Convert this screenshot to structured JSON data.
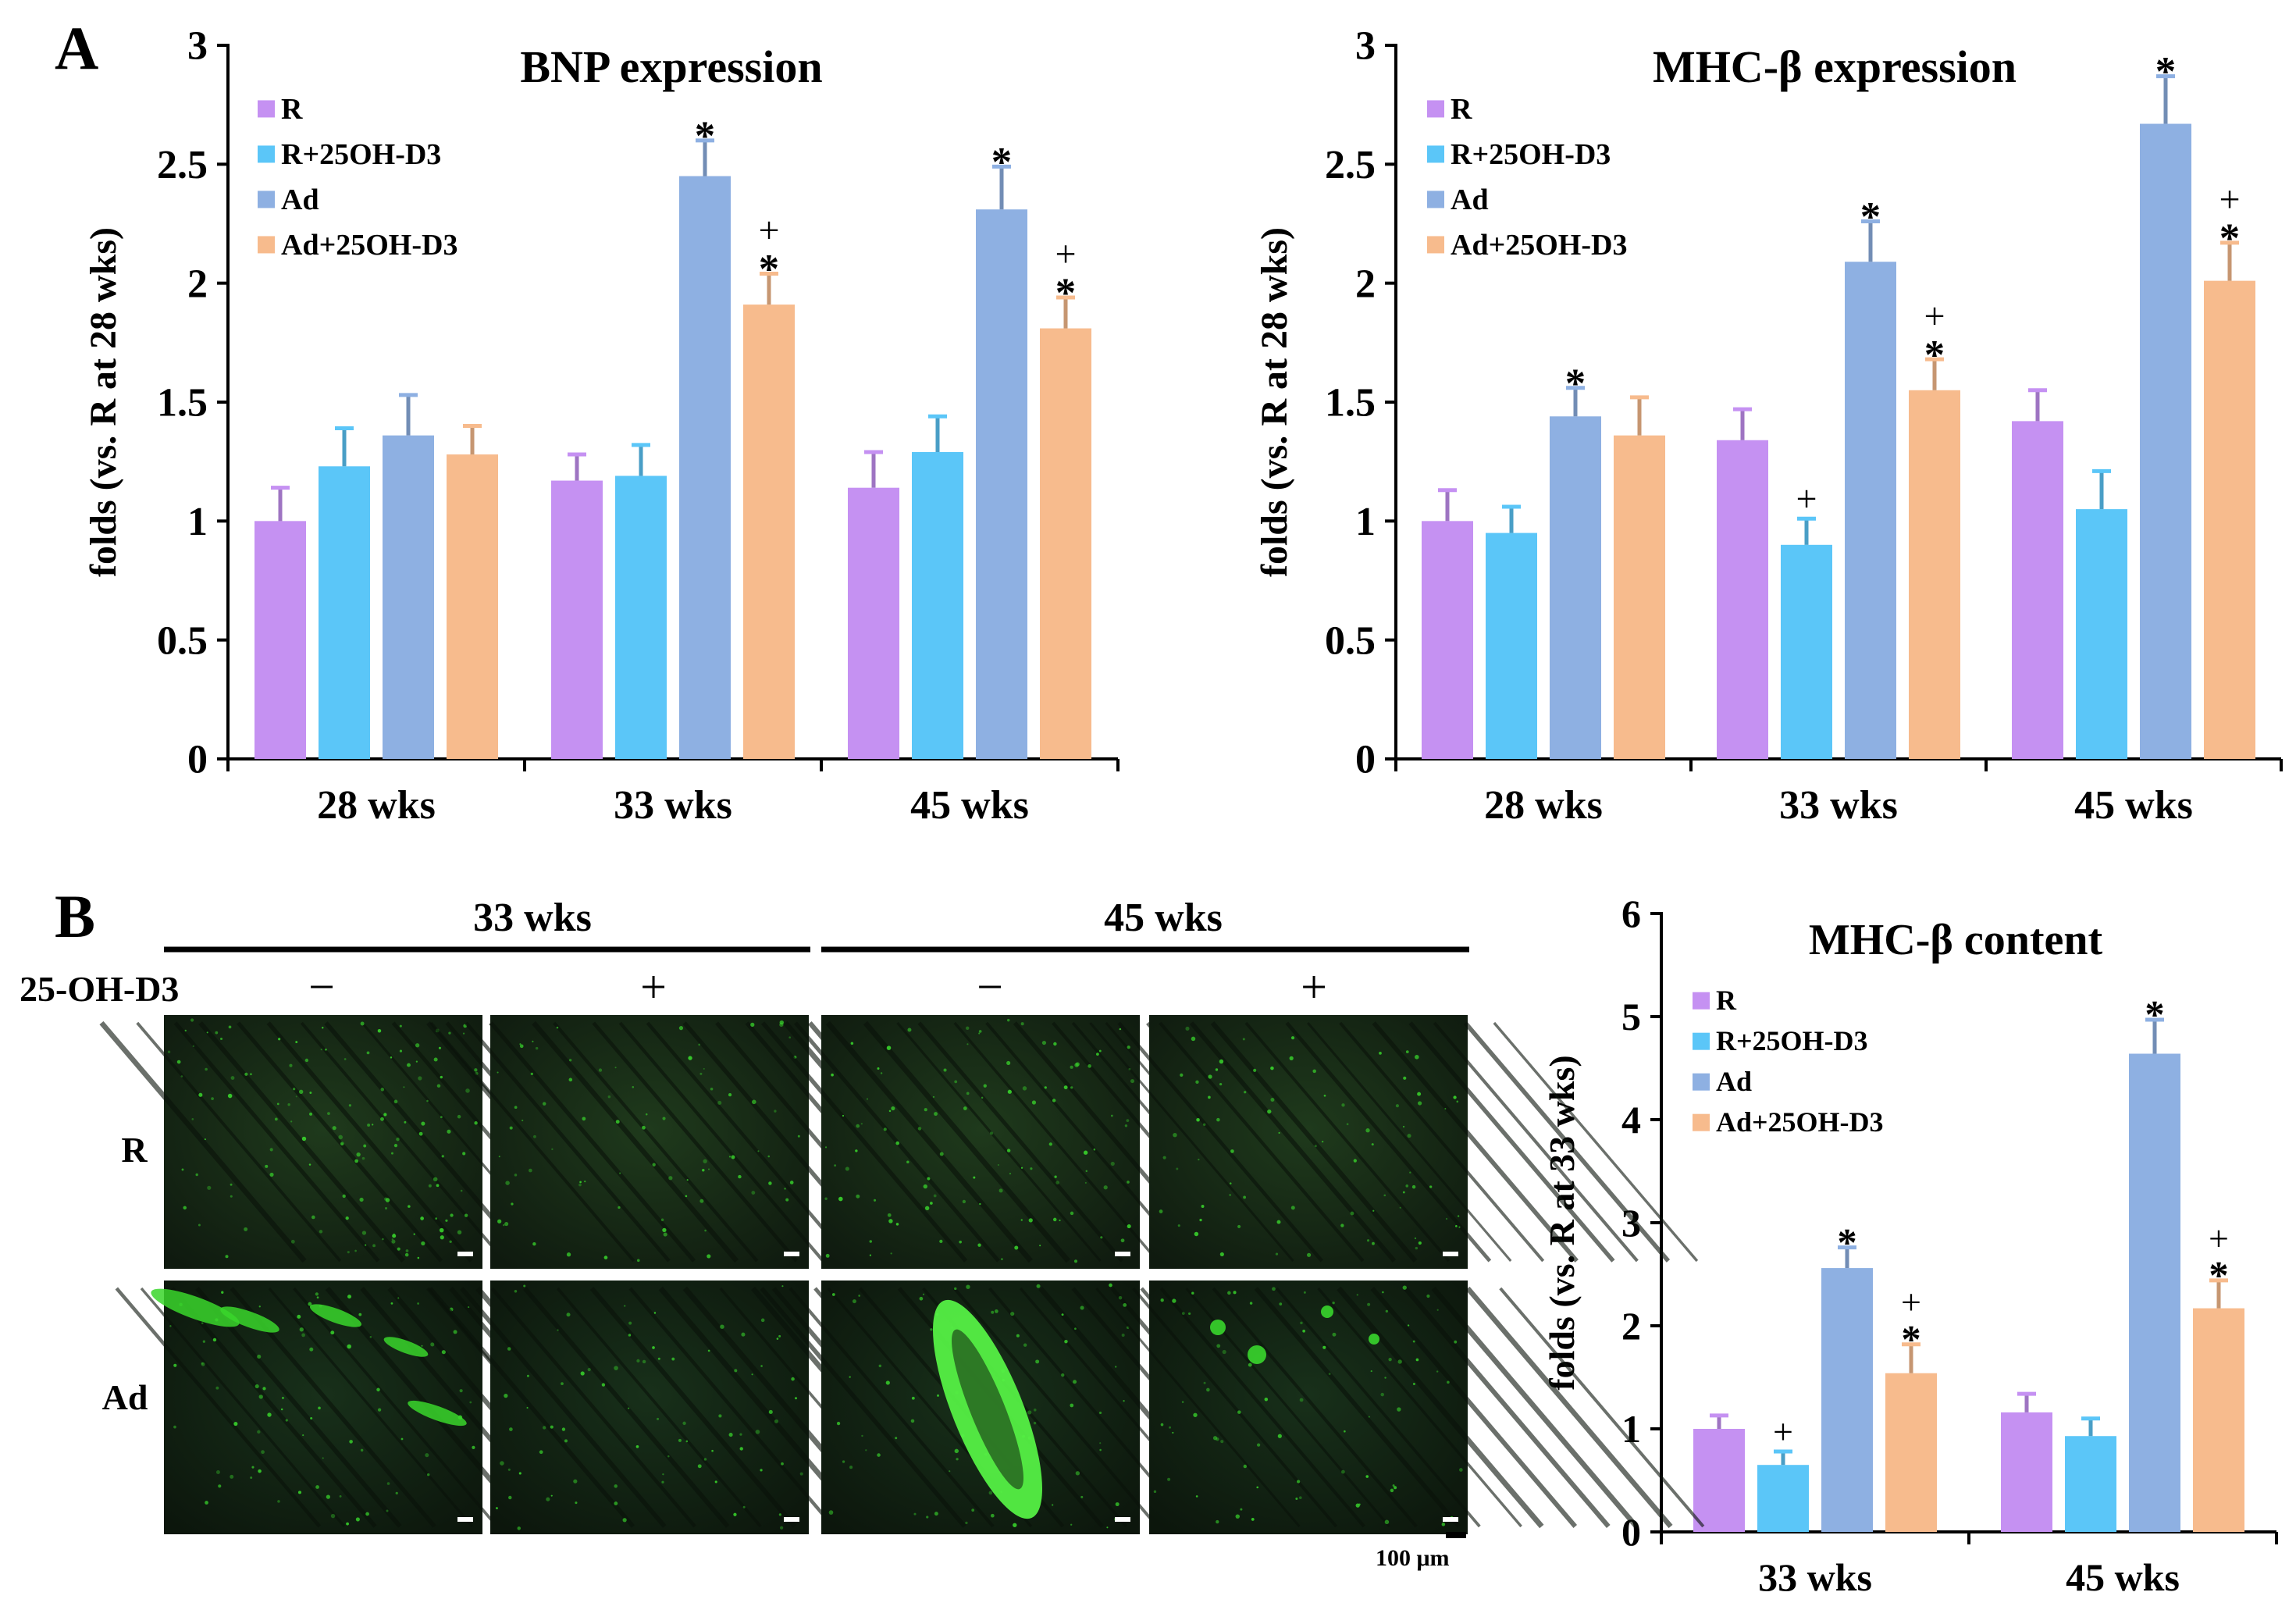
{
  "panels": {
    "a_label": "A",
    "b_label": "B"
  },
  "colors": {
    "R": "#c591f2",
    "R+25OH-D3": "#5bc6f8",
    "Ad": "#8eb0e2",
    "Ad+25OH-D3": "#f7bb8d",
    "axis": "#000000",
    "fluor": "#39d62c"
  },
  "chart_data": [
    {
      "type": "bar",
      "title": "BNP expression",
      "ylabel": "folds (vs. R at 28 wks)",
      "xlabel": "",
      "ylim": [
        0,
        3
      ],
      "yticks": [
        "0",
        "0.5",
        "1",
        "1.5",
        "2",
        "2.5",
        "3"
      ],
      "categories": [
        "28 wks",
        "33 wks",
        "45 wks"
      ],
      "legend": "top-left",
      "series": [
        {
          "name": "R",
          "values": [
            1.0,
            1.17,
            1.14
          ],
          "errors": [
            0.14,
            0.11,
            0.15
          ],
          "marks": [
            "",
            "",
            ""
          ]
        },
        {
          "name": "R+25OH-D3",
          "values": [
            1.23,
            1.19,
            1.29
          ],
          "errors": [
            0.16,
            0.13,
            0.15
          ],
          "marks": [
            "",
            "",
            ""
          ]
        },
        {
          "name": "Ad",
          "values": [
            1.36,
            2.45,
            2.31
          ],
          "errors": [
            0.17,
            0.15,
            0.18
          ],
          "marks": [
            "",
            "*",
            "*"
          ]
        },
        {
          "name": "Ad+25OH-D3",
          "values": [
            1.28,
            1.91,
            1.81
          ],
          "errors": [
            0.12,
            0.13,
            0.13
          ],
          "marks": [
            "",
            "+*",
            "+*"
          ]
        }
      ]
    },
    {
      "type": "bar",
      "title": "MHC-β expression",
      "ylabel": "folds (vs. R at 28 wks)",
      "xlabel": "",
      "ylim": [
        0,
        3
      ],
      "yticks": [
        "0",
        "0.5",
        "1",
        "1.5",
        "2",
        "2.5",
        "3"
      ],
      "categories": [
        "28 wks",
        "33 wks",
        "45 wks"
      ],
      "legend": "top-left",
      "series": [
        {
          "name": "R",
          "values": [
            1.0,
            1.34,
            1.42
          ],
          "errors": [
            0.13,
            0.13,
            0.13
          ],
          "marks": [
            "",
            "",
            ""
          ]
        },
        {
          "name": "R+25OH-D3",
          "values": [
            0.95,
            0.9,
            1.05
          ],
          "errors": [
            0.11,
            0.11,
            0.16
          ],
          "marks": [
            "",
            "+",
            ""
          ]
        },
        {
          "name": "Ad",
          "values": [
            1.44,
            2.09,
            2.67
          ],
          "errors": [
            0.12,
            0.17,
            0.2
          ],
          "marks": [
            "*",
            "*",
            "*"
          ]
        },
        {
          "name": "Ad+25OH-D3",
          "values": [
            1.36,
            1.55,
            2.01
          ],
          "errors": [
            0.16,
            0.13,
            0.16
          ],
          "marks": [
            "",
            "+*",
            "+*"
          ]
        }
      ]
    },
    {
      "type": "bar",
      "title": "MHC-β content",
      "ylabel": "folds (vs. R at 33 wks)",
      "xlabel": "",
      "ylim": [
        0,
        6
      ],
      "yticks": [
        "0",
        "1",
        "2",
        "3",
        "4",
        "5",
        "6"
      ],
      "categories": [
        "33 wks",
        "45 wks"
      ],
      "legend": "top-left",
      "series": [
        {
          "name": "R",
          "values": [
            1.0,
            1.16
          ],
          "errors": [
            0.13,
            0.18
          ],
          "marks": [
            "",
            ""
          ]
        },
        {
          "name": "R+25OH-D3",
          "values": [
            0.65,
            0.93
          ],
          "errors": [
            0.13,
            0.17
          ],
          "marks": [
            "+",
            ""
          ]
        },
        {
          "name": "Ad",
          "values": [
            2.56,
            4.64
          ],
          "errors": [
            0.2,
            0.33
          ],
          "marks": [
            "*",
            "*"
          ]
        },
        {
          "name": "Ad+25OH-D3",
          "values": [
            1.54,
            2.17
          ],
          "errors": [
            0.28,
            0.27
          ],
          "marks": [
            "+*",
            "+*"
          ]
        }
      ]
    }
  ],
  "micrograph": {
    "groups": [
      "33 wks",
      "45 wks"
    ],
    "treatment_label": "25-OH-D3",
    "treatment_signs": [
      "−",
      "+",
      "−",
      "+"
    ],
    "rows": [
      "R",
      "Ad"
    ],
    "scale_bar": "100 μm"
  }
}
